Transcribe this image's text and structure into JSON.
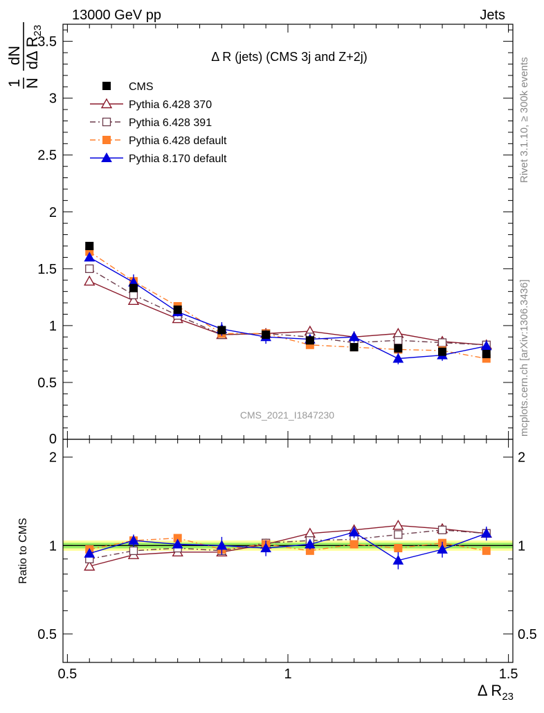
{
  "header": {
    "left": "13000 GeV pp",
    "right": "Jets"
  },
  "side_labels": {
    "upper": "Rivet 3.1.10, ≥ 300k events",
    "lower": "mcplots.cern.ch [arXiv:1306.3436]"
  },
  "chart_data": {
    "type": "scatter",
    "title": "Δ R (jets) (CMS 3j and Z+2j)",
    "watermark": "CMS_2021_I1847230",
    "xlabel": "Δ R23",
    "ylabel_main": "1/N dN/dΔ R23",
    "ylabel_ratio": "Ratio to CMS",
    "xlim": [
      0.49,
      1.51
    ],
    "ylim_main": [
      0,
      3.65
    ],
    "ylim_ratio": [
      0.4,
      2.3
    ],
    "ratio_scale": "log",
    "x_ticks": [
      "0.5",
      "1",
      "1.5"
    ],
    "y_ticks_main": [
      "0",
      "0.5",
      "1",
      "1.5",
      "2",
      "2.5",
      "3",
      "3.5"
    ],
    "y_ticks_ratio": [
      "0.5",
      "1",
      "2"
    ],
    "legend_position": "top-left",
    "x": [
      0.55,
      0.65,
      0.75,
      0.85,
      0.95,
      1.05,
      1.15,
      1.25,
      1.35,
      1.45
    ],
    "series": [
      {
        "name": "CMS",
        "color": "#000000",
        "marker": "square-filled",
        "line": "none",
        "values": [
          1.7,
          1.33,
          1.14,
          0.96,
          0.92,
          0.87,
          0.81,
          0.8,
          0.77,
          0.75
        ],
        "errors": [
          0.02,
          0.02,
          0.02,
          0.02,
          0.02,
          0.02,
          0.02,
          0.02,
          0.02,
          0.02
        ],
        "ratio": [
          1.0,
          1.0,
          1.0,
          1.0,
          1.0,
          1.0,
          1.0,
          1.0,
          1.0,
          1.0
        ],
        "ratio_errors": [
          0.025,
          0.025,
          0.025,
          0.025,
          0.025,
          0.025,
          0.025,
          0.025,
          0.025,
          0.025
        ]
      },
      {
        "name": "Pythia 6.428 370",
        "color": "#8b1a2b",
        "marker": "triangle-open",
        "line": "solid",
        "values": [
          1.39,
          1.22,
          1.06,
          0.92,
          0.93,
          0.95,
          0.9,
          0.93,
          0.86,
          0.83
        ],
        "errors": [
          0.02,
          0.02,
          0.02,
          0.02,
          0.02,
          0.02,
          0.02,
          0.02,
          0.02,
          0.02
        ],
        "ratio": [
          0.85,
          0.93,
          0.95,
          0.95,
          1.01,
          1.1,
          1.13,
          1.17,
          1.14,
          1.1
        ],
        "ratio_errors": [
          0.02,
          0.02,
          0.02,
          0.02,
          0.02,
          0.02,
          0.02,
          0.02,
          0.02,
          0.02
        ]
      },
      {
        "name": "Pythia 6.428 391",
        "color": "#6b3a4a",
        "marker": "square-open",
        "line": "dashdot",
        "values": [
          1.5,
          1.27,
          1.09,
          0.92,
          0.93,
          0.9,
          0.85,
          0.87,
          0.85,
          0.83
        ],
        "errors": [
          0.02,
          0.02,
          0.02,
          0.02,
          0.02,
          0.02,
          0.02,
          0.02,
          0.02,
          0.02
        ],
        "ratio": [
          0.9,
          0.96,
          0.98,
          0.96,
          1.02,
          1.04,
          1.05,
          1.09,
          1.13,
          1.1
        ],
        "ratio_errors": [
          0.02,
          0.02,
          0.02,
          0.02,
          0.02,
          0.02,
          0.02,
          0.02,
          0.02,
          0.02
        ]
      },
      {
        "name": "Pythia 6.428 default",
        "color": "#ff7f2a",
        "marker": "square-filled",
        "line": "dashdot",
        "values": [
          1.65,
          1.39,
          1.17,
          0.93,
          0.93,
          0.83,
          0.81,
          0.79,
          0.78,
          0.71
        ],
        "errors": [
          0.02,
          0.02,
          0.02,
          0.02,
          0.02,
          0.02,
          0.02,
          0.02,
          0.02,
          0.02
        ],
        "ratio": [
          0.97,
          1.04,
          1.06,
          0.97,
          1.01,
          0.96,
          1.01,
          0.98,
          1.02,
          0.96
        ],
        "ratio_errors": [
          0.02,
          0.02,
          0.02,
          0.02,
          0.02,
          0.02,
          0.02,
          0.02,
          0.02,
          0.02
        ]
      },
      {
        "name": "Pythia 8.170 default",
        "color": "#0000dd",
        "marker": "triangle-filled",
        "line": "solid",
        "values": [
          1.6,
          1.38,
          1.12,
          0.97,
          0.9,
          0.88,
          0.9,
          0.71,
          0.74,
          0.82
        ],
        "errors": [
          0.02,
          0.07,
          0.04,
          0.06,
          0.06,
          0.04,
          0.05,
          0.05,
          0.05,
          0.05
        ],
        "ratio": [
          0.94,
          1.04,
          1.01,
          1.0,
          0.98,
          1.01,
          1.11,
          0.89,
          0.97,
          1.1
        ],
        "ratio_errors": [
          0.02,
          0.05,
          0.03,
          0.07,
          0.06,
          0.04,
          0.05,
          0.06,
          0.06,
          0.06
        ]
      }
    ]
  }
}
